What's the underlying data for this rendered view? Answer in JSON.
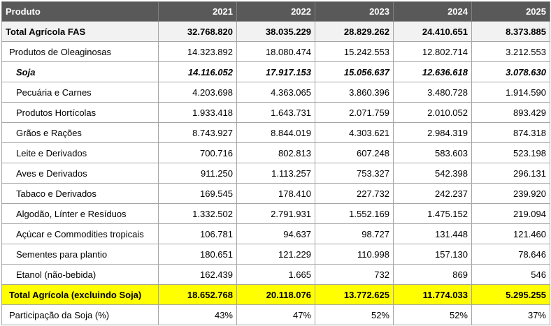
{
  "header": {
    "produto": "Produto",
    "years": [
      "2021",
      "2022",
      "2023",
      "2024",
      "2025"
    ]
  },
  "rows": [
    {
      "label": "Total Agrícola FAS",
      "values": [
        "32.768.820",
        "38.035.229",
        "28.829.262",
        "24.410.651",
        "8.373.885"
      ]
    },
    {
      "label": "Produtos de Oleaginosas",
      "values": [
        "14.323.892",
        "18.080.474",
        "15.242.553",
        "12.802.714",
        "3.212.553"
      ]
    },
    {
      "label": "Soja",
      "values": [
        "14.116.052",
        "17.917.153",
        "15.056.637",
        "12.636.618",
        "3.078.630"
      ]
    },
    {
      "label": "Pecuária e Carnes",
      "values": [
        "4.203.698",
        "4.363.065",
        "3.860.396",
        "3.480.728",
        "1.914.590"
      ]
    },
    {
      "label": "Produtos Hortícolas",
      "values": [
        "1.933.418",
        "1.643.731",
        "2.071.759",
        "2.010.052",
        "893.429"
      ]
    },
    {
      "label": "Grãos e Rações",
      "values": [
        "8.743.927",
        "8.844.019",
        "4.303.621",
        "2.984.319",
        "874.318"
      ]
    },
    {
      "label": "Leite e Derivados",
      "values": [
        "700.716",
        "802.813",
        "607.248",
        "583.603",
        "523.198"
      ]
    },
    {
      "label": "Aves e Derivados",
      "values": [
        "911.250",
        "1.113.257",
        "753.327",
        "542.398",
        "296.131"
      ]
    },
    {
      "label": "Tabaco e Derivados",
      "values": [
        "169.545",
        "178.410",
        "227.732",
        "242.237",
        "239.920"
      ]
    },
    {
      "label": "Algodão, Línter e Resíduos",
      "values": [
        "1.332.502",
        "2.791.931",
        "1.552.169",
        "1.475.152",
        "219.094"
      ]
    },
    {
      "label": "Açúcar e Commodities tropicais",
      "values": [
        "106.781",
        "94.637",
        "98.727",
        "131.448",
        "121.460"
      ]
    },
    {
      "label": "Sementes para plantio",
      "values": [
        "180.651",
        "121.229",
        "110.998",
        "157.130",
        "78.646"
      ]
    },
    {
      "label": "Etanol (não-bebida)",
      "values": [
        "162.439",
        "1.665",
        "732",
        "869",
        "546"
      ]
    },
    {
      "label": "Total Agrícola (excluindo Soja)",
      "values": [
        "18.652.768",
        "20.118.076",
        "13.772.625",
        "11.774.033",
        "5.295.255"
      ]
    },
    {
      "label": "Participação da Soja (%)",
      "values": [
        "43%",
        "47%",
        "52%",
        "52%",
        "37%"
      ]
    }
  ],
  "colors": {
    "header_bg": "#595959",
    "header_text": "#ffffff",
    "total_row_bg": "#f2f2f2",
    "highlight_row_bg": "#ffff00",
    "border": "#a6a6a6"
  }
}
